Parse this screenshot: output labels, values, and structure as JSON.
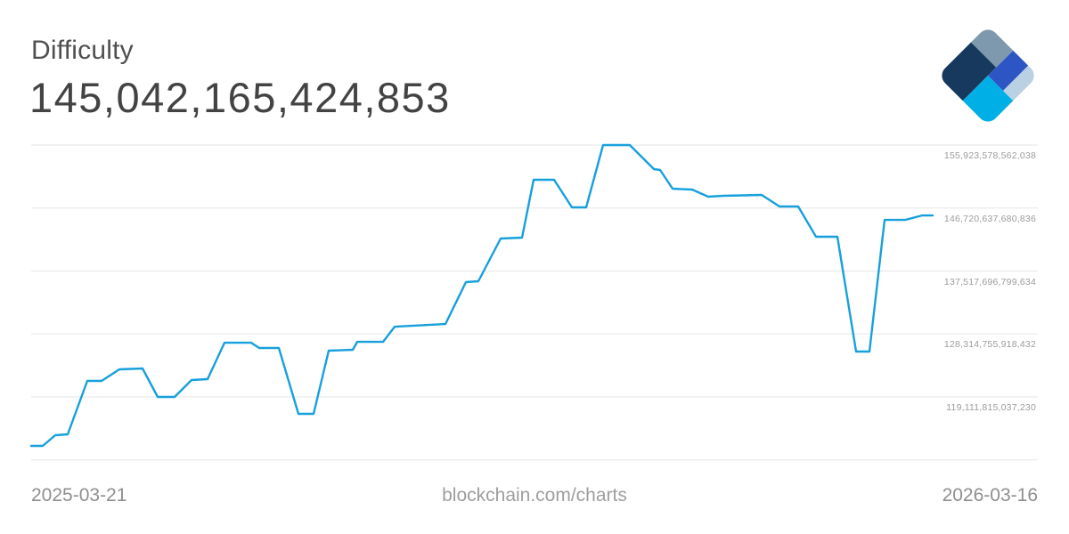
{
  "header": {
    "title": "Difficulty",
    "value": "145,042,165,424,853"
  },
  "footer": {
    "start_date": "2025-03-21",
    "watermark": "blockchain.com/charts",
    "end_date": "2026-03-16"
  },
  "logo": {
    "name": "blockchain-com-logo",
    "colors": {
      "gray": "#7E99AE",
      "navy": "#16395D",
      "royal": "#2D55C4",
      "light": "#B9D1E2",
      "cyan": "#00AFE6"
    }
  },
  "chart_data": {
    "type": "line",
    "title": "Difficulty",
    "current_value": "145,042,165,424,853",
    "x_range": [
      "2025-03-21",
      "2026-03-16"
    ],
    "grid": true,
    "grid_color": "#e5e5e5",
    "legend": "none",
    "y_axis": {
      "side": "right",
      "labels": [
        "155,923,578,562,038",
        "146,720,637,680,836",
        "137,517,696,799,634",
        "128,314,755,918,432",
        "119,111,815,037,230"
      ],
      "label_values_trillion": [
        155.9236,
        146.7206,
        137.5177,
        128.3148,
        119.1118
      ],
      "gridline_count": 6,
      "value_max_trillion": 155.9236,
      "value_step_trillion": 9.20294
    },
    "series": [
      {
        "name": "Difficulty",
        "color": "#17A0DC",
        "unit": "trillion (difficulty)",
        "steps": [
          {
            "date": "2025-03-21",
            "value_T": 111.96
          },
          {
            "date": "2025-04-04",
            "value_T": 113.6
          },
          {
            "date": "2025-04-18",
            "value_T": 121.45
          },
          {
            "date": "2025-05-02",
            "value_T": 123.2
          },
          {
            "date": "2025-05-16",
            "value_T": 119.11
          },
          {
            "date": "2025-05-30",
            "value_T": 121.65
          },
          {
            "date": "2025-06-13",
            "value_T": 127.04
          },
          {
            "date": "2025-06-27",
            "value_T": 126.26
          },
          {
            "date": "2025-07-11",
            "value_T": 116.64
          },
          {
            "date": "2025-07-25",
            "value_T": 125.95
          },
          {
            "date": "2025-08-08",
            "value_T": 127.17
          },
          {
            "date": "2025-08-22",
            "value_T": 129.6
          },
          {
            "date": "2025-09-05",
            "value_T": 135.95
          },
          {
            "date": "2025-09-19",
            "value_T": 142.33
          },
          {
            "date": "2025-10-03",
            "value_T": 150.85
          },
          {
            "date": "2025-10-17",
            "value_T": 146.82
          },
          {
            "date": "2025-10-31",
            "value_T": 155.92
          },
          {
            "date": "2025-11-14",
            "value_T": 152.35
          },
          {
            "date": "2025-11-28",
            "value_T": 149.5
          },
          {
            "date": "2025-12-12",
            "value_T": 148.38
          },
          {
            "date": "2025-12-26",
            "value_T": 148.64
          },
          {
            "date": "2026-01-09",
            "value_T": 146.95
          },
          {
            "date": "2026-01-23",
            "value_T": 142.52
          },
          {
            "date": "2026-02-06",
            "value_T": 125.74
          },
          {
            "date": "2026-02-20",
            "value_T": 144.99
          },
          {
            "date": "2026-03-06",
            "value_T": 145.04
          }
        ],
        "render_polyline_x_valueT": [
          [
            35,
            111.96
          ],
          [
            48,
            111.96
          ],
          [
            62,
            113.52
          ],
          [
            76,
            113.65
          ],
          [
            98,
            121.45
          ],
          [
            114,
            121.45
          ],
          [
            134,
            123.14
          ],
          [
            160,
            123.27
          ],
          [
            177,
            119.11
          ],
          [
            196,
            119.11
          ],
          [
            215,
            121.58
          ],
          [
            233,
            121.71
          ],
          [
            252,
            127.04
          ],
          [
            282,
            127.04
          ],
          [
            291,
            126.26
          ],
          [
            313,
            126.26
          ],
          [
            335,
            116.64
          ],
          [
            352,
            116.64
          ],
          [
            369,
            125.87
          ],
          [
            396,
            126.0
          ],
          [
            401,
            127.17
          ],
          [
            430,
            127.17
          ],
          [
            443,
            129.38
          ],
          [
            500,
            129.77
          ],
          [
            523,
            135.89
          ],
          [
            537,
            136.02
          ],
          [
            562,
            142.26
          ],
          [
            586,
            142.39
          ],
          [
            599,
            150.85
          ],
          [
            622,
            150.85
          ],
          [
            642,
            146.82
          ],
          [
            658,
            146.82
          ],
          [
            677,
            155.92
          ],
          [
            707,
            155.92
          ],
          [
            734,
            152.41
          ],
          [
            741,
            152.28
          ],
          [
            755,
            149.55
          ],
          [
            777,
            149.42
          ],
          [
            795,
            148.38
          ],
          [
            812,
            148.51
          ],
          [
            855,
            148.64
          ],
          [
            875,
            146.95
          ],
          [
            896,
            146.95
          ],
          [
            916,
            142.52
          ],
          [
            940,
            142.52
          ],
          [
            961,
            125.74
          ],
          [
            976,
            125.74
          ],
          [
            993,
            144.99
          ],
          [
            1016,
            144.99
          ],
          [
            1035,
            145.64
          ],
          [
            1047,
            145.64
          ]
        ]
      }
    ],
    "plot_geometry": {
      "grid_x_left": 35,
      "grid_x_right": 1165,
      "grid_y_top": 163,
      "grid_row_height": 70.75,
      "label_offset_below_gridline": 6
    }
  }
}
